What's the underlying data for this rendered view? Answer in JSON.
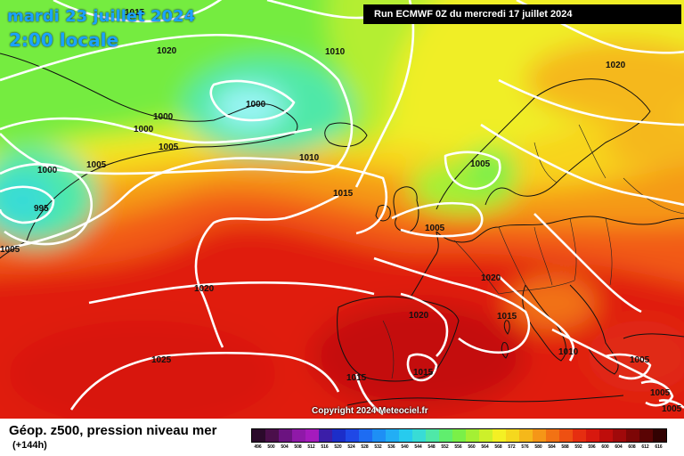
{
  "header": {
    "date_title": "mardi 23 juillet 2024",
    "time_title": "2:00 locale",
    "run_info": "Run ECMWF 0Z du mercredi 17 juillet 2024",
    "copyright": "Copyright 2024 Meteociel.fr"
  },
  "legend": {
    "parameter": "Géop. z500, pression niveau mer",
    "lead_time": "(+144h)",
    "scale_values": [
      "496",
      "500",
      "504",
      "508",
      "512",
      "516",
      "520",
      "524",
      "528",
      "532",
      "536",
      "540",
      "544",
      "548",
      "552",
      "556",
      "560",
      "564",
      "568",
      "572",
      "576",
      "580",
      "584",
      "588",
      "592",
      "596",
      "600",
      "604",
      "608",
      "612",
      "616"
    ],
    "scale_colors": [
      "#2b0a2b",
      "#4b0f4b",
      "#6b1380",
      "#8f19a8",
      "#a51bbd",
      "#3b1ea8",
      "#1c2ec9",
      "#1f48e6",
      "#1e6cf2",
      "#1e8ff5",
      "#22aef5",
      "#27cbee",
      "#38dcd6",
      "#4fe8a8",
      "#60ee6e",
      "#7af048",
      "#a4f034",
      "#cdf02a",
      "#f4f024",
      "#f5d81e",
      "#f5b81a",
      "#f59617",
      "#f27214",
      "#ee5012",
      "#e62e10",
      "#d8180e",
      "#bf0d0b",
      "#a0090a",
      "#7d0606",
      "#5a0404",
      "#320202"
    ]
  },
  "isobars": [
    {
      "label": "1015"
    },
    {
      "label": "1020"
    },
    {
      "label": "1010"
    },
    {
      "label": "1000"
    },
    {
      "label": "1000"
    },
    {
      "label": "1000"
    },
    {
      "label": "1005"
    },
    {
      "label": "1005"
    },
    {
      "label": "1000"
    },
    {
      "label": "995"
    },
    {
      "label": "1005"
    },
    {
      "label": "1010"
    },
    {
      "label": "1015"
    },
    {
      "label": "1005"
    },
    {
      "label": "1005"
    },
    {
      "label": "1020"
    },
    {
      "label": "1020"
    },
    {
      "label": "1020"
    },
    {
      "label": "1015"
    },
    {
      "label": "1020"
    },
    {
      "label": "1025"
    },
    {
      "label": "1015"
    },
    {
      "label": "1015"
    },
    {
      "label": "1010"
    },
    {
      "label": "1005"
    },
    {
      "label": "1005"
    },
    {
      "label": "1005"
    }
  ]
}
